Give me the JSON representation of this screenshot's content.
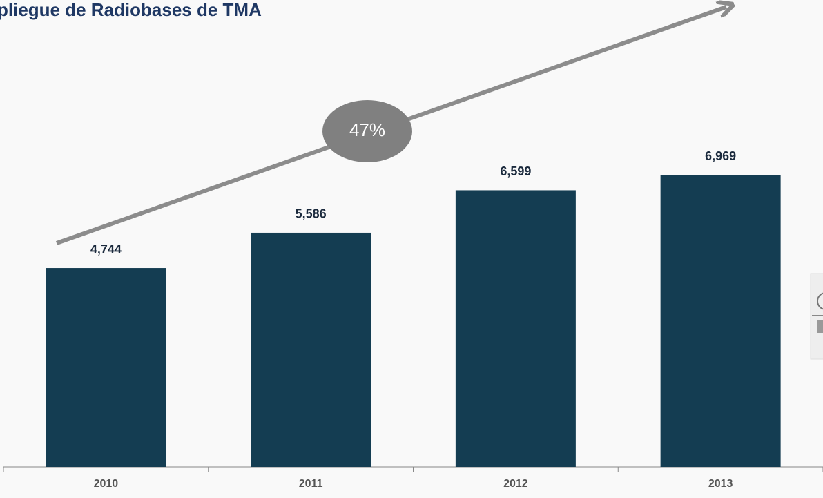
{
  "chart_data": {
    "type": "bar",
    "title": "pliegue de Radiobases de TMA",
    "categories": [
      "2010",
      "2011",
      "2012",
      "2013"
    ],
    "values": [
      4744,
      5586,
      6599,
      6969
    ],
    "value_labels": [
      "4,744",
      "5,586",
      "6,599",
      "6,969"
    ],
    "color": "#143d52",
    "annotation": "47%"
  }
}
